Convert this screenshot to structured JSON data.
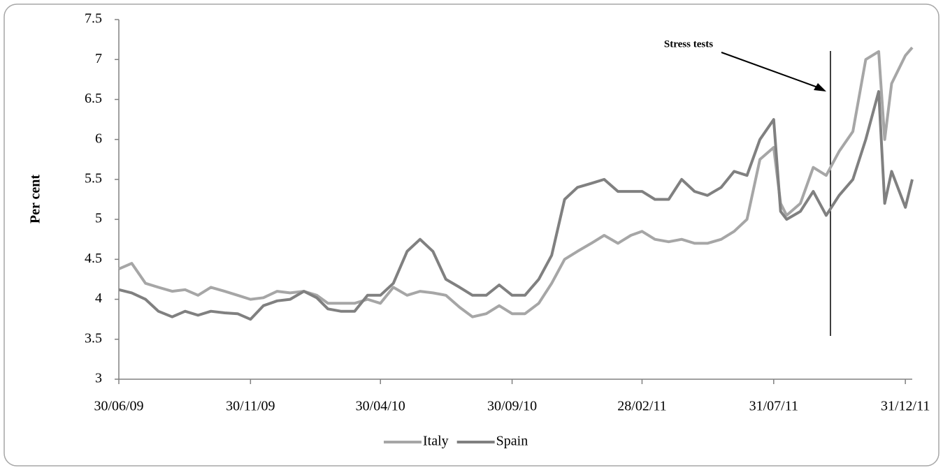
{
  "chart_data": {
    "type": "line",
    "y_label": "Per cent",
    "annotation": "Stress tests",
    "x": [
      "30/06/09",
      "15/07/09",
      "31/07/09",
      "15/08/09",
      "31/08/09",
      "15/09/09",
      "30/09/09",
      "15/10/09",
      "31/10/09",
      "15/11/09",
      "30/11/09",
      "15/12/09",
      "31/12/09",
      "15/01/10",
      "31/01/10",
      "15/02/10",
      "28/02/10",
      "15/03/10",
      "31/03/10",
      "15/04/10",
      "30/04/10",
      "15/05/10",
      "31/05/10",
      "15/06/10",
      "30/06/10",
      "15/07/10",
      "31/07/10",
      "15/08/10",
      "31/08/10",
      "15/09/10",
      "30/09/10",
      "15/10/10",
      "31/10/10",
      "15/11/10",
      "30/11/10",
      "15/12/10",
      "31/12/10",
      "15/01/11",
      "31/01/11",
      "15/02/11",
      "28/02/11",
      "15/03/11",
      "31/03/11",
      "15/04/11",
      "30/04/11",
      "15/05/11",
      "31/05/11",
      "15/06/11",
      "30/06/11",
      "15/07/11",
      "31/07/11",
      "08/08/11",
      "15/08/11",
      "31/08/11",
      "15/09/11",
      "30/09/11",
      "15/10/11",
      "31/10/11",
      "15/11/11",
      "30/11/11",
      "07/12/11",
      "15/12/11",
      "31/12/11",
      "08/01/12"
    ],
    "series": [
      {
        "name": "Italy",
        "color": "#a6a6a6",
        "values": [
          4.38,
          4.45,
          4.2,
          4.15,
          4.1,
          4.12,
          4.05,
          4.15,
          4.1,
          4.05,
          4.0,
          4.02,
          4.1,
          4.08,
          4.1,
          4.05,
          3.95,
          3.95,
          3.95,
          4.0,
          3.95,
          4.15,
          4.05,
          4.1,
          4.08,
          4.05,
          3.9,
          3.78,
          3.82,
          3.92,
          3.82,
          3.82,
          3.95,
          4.2,
          4.5,
          4.6,
          4.7,
          4.8,
          4.7,
          4.8,
          4.85,
          4.75,
          4.72,
          4.75,
          4.7,
          4.7,
          4.75,
          4.85,
          5.0,
          5.75,
          5.9,
          5.2,
          5.05,
          5.2,
          5.65,
          5.55,
          5.85,
          6.1,
          7.0,
          7.1,
          6.0,
          6.7,
          7.05,
          7.15
        ]
      },
      {
        "name": "Spain",
        "color": "#808080",
        "values": [
          4.12,
          4.08,
          4.0,
          3.85,
          3.78,
          3.85,
          3.8,
          3.85,
          3.83,
          3.82,
          3.75,
          3.92,
          3.98,
          4.0,
          4.1,
          4.02,
          3.88,
          3.85,
          3.85,
          4.05,
          4.05,
          4.2,
          4.6,
          4.75,
          4.6,
          4.25,
          4.15,
          4.05,
          4.05,
          4.18,
          4.05,
          4.05,
          4.25,
          4.55,
          5.25,
          5.4,
          5.45,
          5.5,
          5.35,
          5.35,
          5.35,
          5.25,
          5.25,
          5.5,
          5.35,
          5.3,
          5.4,
          5.6,
          5.55,
          6.0,
          6.25,
          5.1,
          5.0,
          5.1,
          5.35,
          5.05,
          5.3,
          5.5,
          6.0,
          6.6,
          5.2,
          5.6,
          5.15,
          5.5
        ]
      }
    ],
    "xlim": [
      "30/06/09",
      "08/01/12"
    ],
    "xticks": [
      "30/06/09",
      "30/11/09",
      "30/04/10",
      "30/09/10",
      "28/02/11",
      "31/07/11",
      "31/12/11"
    ],
    "ylim": [
      3,
      7.5
    ],
    "yticks": [
      3,
      3.5,
      4,
      4.5,
      5,
      5.5,
      6,
      6.5,
      7,
      7.5
    ],
    "legend": "bottom"
  }
}
